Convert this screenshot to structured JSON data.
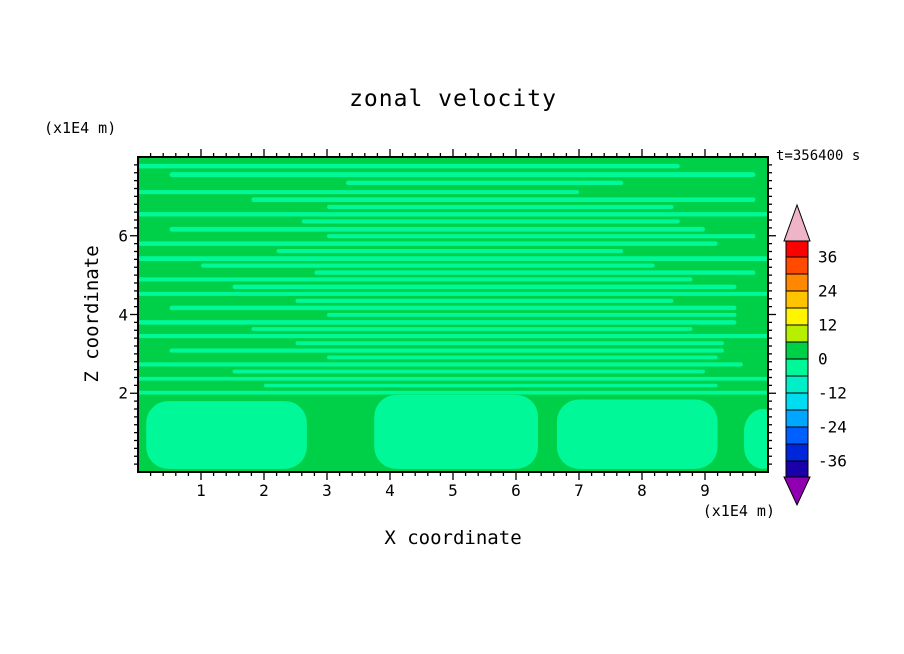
{
  "title": "zonal velocity",
  "time_label": "t=356400 s",
  "axes": {
    "x": {
      "label": "X coordinate",
      "unit": "(x1E4 m)",
      "range": [
        0,
        10
      ],
      "ticks": [
        1,
        2,
        3,
        4,
        5,
        6,
        7,
        8,
        9
      ],
      "minor_step": 0.2
    },
    "z": {
      "label": "Z coordinate",
      "unit": "(x1E4 m)",
      "range": [
        0,
        8
      ],
      "ticks": [
        2,
        4,
        6
      ],
      "minor_step": 0.2
    }
  },
  "chart_data": {
    "type": "heatmap",
    "title": "zonal velocity",
    "xlabel": "X coordinate (x1E4 m)",
    "ylabel": "Z coordinate (x1E4 m)",
    "time_annotation": "t=356400 s",
    "xlim": [
      0,
      10
    ],
    "ylim": [
      0,
      8
    ],
    "grid": false,
    "legend_position": "right-colorbar",
    "value_summary": "Zonal velocity field near zero: only two contour bands visible. Background band 0 to 6 (green) with thin horizontal streaks of the -6 to 0 band (light spring green) filling the upper region (z > 2), and large rounded blobs of the -6 to 0 band in the lower region (z < 2).",
    "field_colors": {
      "base_band_0_to_6": "#00d048",
      "streak_band_minus6_to_0": "#00f898"
    },
    "colorbar": {
      "tick_labels": [
        36,
        24,
        12,
        0,
        -12,
        -24,
        -36
      ],
      "band_step": 6,
      "range": [
        -42,
        42
      ],
      "over_color": "#f0b4c8",
      "under_color": "#9000b0",
      "bands_top_to_bottom": [
        {
          "from": 36,
          "to": 42,
          "color": "#fd0000"
        },
        {
          "from": 30,
          "to": 36,
          "color": "#ff4a00"
        },
        {
          "from": 24,
          "to": 30,
          "color": "#ff8800"
        },
        {
          "from": 18,
          "to": 24,
          "color": "#ffc300"
        },
        {
          "from": 12,
          "to": 18,
          "color": "#fff500"
        },
        {
          "from": 6,
          "to": 12,
          "color": "#b8ee00"
        },
        {
          "from": 0,
          "to": 6,
          "color": "#00d048"
        },
        {
          "from": -6,
          "to": 0,
          "color": "#00f898"
        },
        {
          "from": -12,
          "to": -6,
          "color": "#00efc8"
        },
        {
          "from": -18,
          "to": -12,
          "color": "#00dcf0"
        },
        {
          "from": -24,
          "to": -18,
          "color": "#00a6ff"
        },
        {
          "from": -30,
          "to": -24,
          "color": "#0060ff"
        },
        {
          "from": -36,
          "to": -30,
          "color": "#0026dc"
        },
        {
          "from": -42,
          "to": -36,
          "color": "#1a00a8"
        }
      ]
    },
    "stripes_frac_y_x_w_h": [
      [
        0.022,
        0.0,
        0.86,
        0.014
      ],
      [
        0.048,
        0.05,
        0.93,
        0.016
      ],
      [
        0.075,
        0.33,
        0.44,
        0.014
      ],
      [
        0.105,
        0.0,
        0.7,
        0.013
      ],
      [
        0.128,
        0.18,
        0.8,
        0.015
      ],
      [
        0.152,
        0.3,
        0.55,
        0.013
      ],
      [
        0.175,
        0.0,
        1.0,
        0.014
      ],
      [
        0.198,
        0.26,
        0.6,
        0.013
      ],
      [
        0.222,
        0.05,
        0.85,
        0.015
      ],
      [
        0.245,
        0.3,
        0.68,
        0.013
      ],
      [
        0.268,
        0.0,
        0.92,
        0.014
      ],
      [
        0.292,
        0.22,
        0.55,
        0.013
      ],
      [
        0.315,
        0.0,
        1.0,
        0.015
      ],
      [
        0.338,
        0.1,
        0.72,
        0.013
      ],
      [
        0.36,
        0.28,
        0.7,
        0.014
      ],
      [
        0.382,
        0.0,
        0.88,
        0.013
      ],
      [
        0.405,
        0.15,
        0.8,
        0.014
      ],
      [
        0.428,
        0.0,
        1.0,
        0.013
      ],
      [
        0.45,
        0.25,
        0.6,
        0.013
      ],
      [
        0.472,
        0.05,
        0.9,
        0.014
      ],
      [
        0.495,
        0.3,
        0.65,
        0.012
      ],
      [
        0.518,
        0.0,
        0.95,
        0.014
      ],
      [
        0.54,
        0.18,
        0.7,
        0.012
      ],
      [
        0.562,
        0.0,
        1.0,
        0.013
      ],
      [
        0.585,
        0.25,
        0.68,
        0.012
      ],
      [
        0.608,
        0.05,
        0.88,
        0.013
      ],
      [
        0.63,
        0.3,
        0.62,
        0.012
      ],
      [
        0.652,
        0.0,
        0.96,
        0.013
      ],
      [
        0.675,
        0.15,
        0.75,
        0.012
      ],
      [
        0.698,
        0.0,
        1.0,
        0.012
      ],
      [
        0.72,
        0.2,
        0.72,
        0.011
      ],
      [
        0.742,
        0.0,
        1.0,
        0.012
      ]
    ],
    "blobs_frac_x_y_w_h": [
      [
        0.013,
        0.775,
        0.255,
        0.215
      ],
      [
        0.375,
        0.755,
        0.26,
        0.235
      ],
      [
        0.665,
        0.77,
        0.255,
        0.22
      ],
      [
        0.962,
        0.8,
        0.06,
        0.19
      ]
    ]
  }
}
